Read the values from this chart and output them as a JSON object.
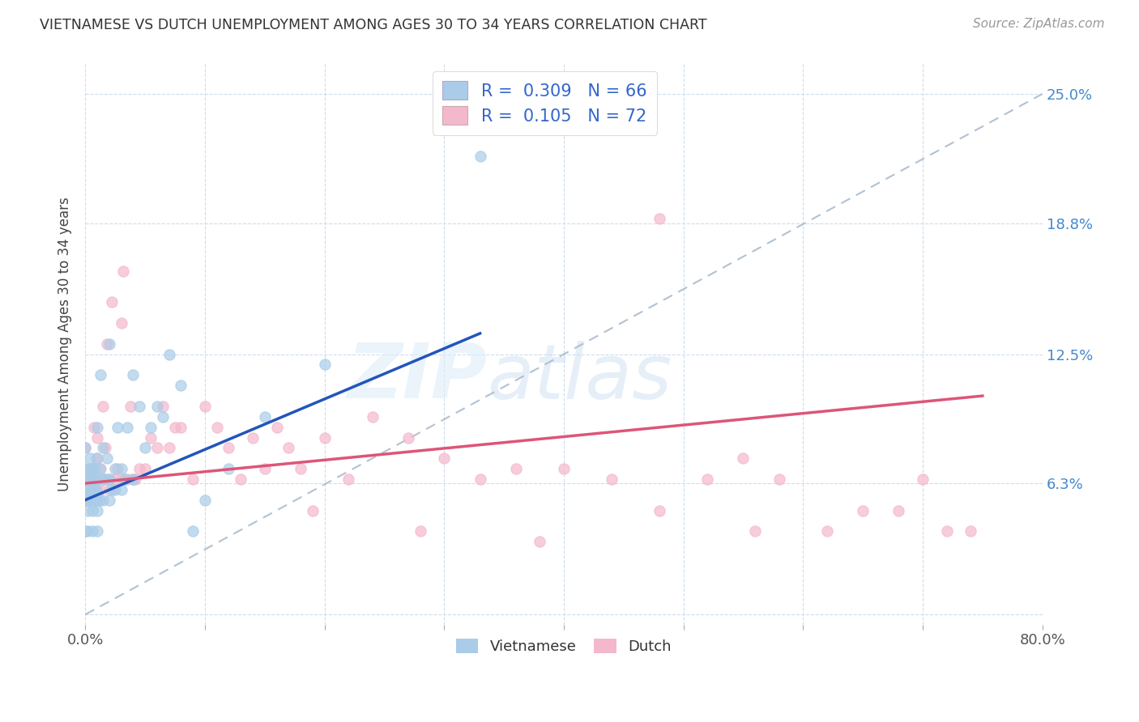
{
  "title": "VIETNAMESE VS DUTCH UNEMPLOYMENT AMONG AGES 30 TO 34 YEARS CORRELATION CHART",
  "source": "Source: ZipAtlas.com",
  "ylabel": "Unemployment Among Ages 30 to 34 years",
  "xlim": [
    0.0,
    0.8
  ],
  "ylim": [
    -0.005,
    0.265
  ],
  "ytick_positions": [
    0.0,
    0.063,
    0.125,
    0.188,
    0.25
  ],
  "ytick_labels": [
    "",
    "6.3%",
    "12.5%",
    "18.8%",
    "25.0%"
  ],
  "legend_R1": "0.309",
  "legend_N1": "66",
  "legend_R2": "0.105",
  "legend_N2": "72",
  "color_viet": "#aacce8",
  "color_dutch": "#f4b8cc",
  "color_line_viet": "#2255bb",
  "color_line_dutch": "#dd5577",
  "color_diag": "#aabbcc",
  "watermark_zip": "ZIP",
  "watermark_atlas": "atlas",
  "background_color": "#ffffff",
  "viet_line_x0": 0.0,
  "viet_line_y0": 0.055,
  "viet_line_x1": 0.33,
  "viet_line_y1": 0.135,
  "dutch_line_x0": 0.0,
  "dutch_line_y0": 0.063,
  "dutch_line_x1": 0.75,
  "dutch_line_y1": 0.105,
  "viet_x": [
    0.0,
    0.0,
    0.0,
    0.0,
    0.0,
    0.0,
    0.0,
    0.002,
    0.002,
    0.003,
    0.003,
    0.004,
    0.004,
    0.004,
    0.005,
    0.005,
    0.005,
    0.005,
    0.006,
    0.006,
    0.006,
    0.007,
    0.007,
    0.008,
    0.008,
    0.009,
    0.009,
    0.01,
    0.01,
    0.01,
    0.01,
    0.01,
    0.012,
    0.012,
    0.013,
    0.015,
    0.015,
    0.015,
    0.017,
    0.018,
    0.02,
    0.02,
    0.02,
    0.022,
    0.025,
    0.025,
    0.027,
    0.03,
    0.03,
    0.033,
    0.035,
    0.04,
    0.04,
    0.045,
    0.05,
    0.055,
    0.06,
    0.065,
    0.07,
    0.08,
    0.09,
    0.1,
    0.12,
    0.15,
    0.2,
    0.33
  ],
  "viet_y": [
    0.055,
    0.06,
    0.063,
    0.065,
    0.07,
    0.08,
    0.04,
    0.04,
    0.05,
    0.055,
    0.06,
    0.065,
    0.07,
    0.075,
    0.055,
    0.06,
    0.065,
    0.07,
    0.04,
    0.05,
    0.055,
    0.06,
    0.065,
    0.055,
    0.07,
    0.06,
    0.075,
    0.04,
    0.05,
    0.055,
    0.065,
    0.09,
    0.055,
    0.07,
    0.115,
    0.055,
    0.065,
    0.08,
    0.065,
    0.075,
    0.055,
    0.065,
    0.13,
    0.06,
    0.06,
    0.07,
    0.09,
    0.06,
    0.07,
    0.065,
    0.09,
    0.065,
    0.115,
    0.1,
    0.08,
    0.09,
    0.1,
    0.095,
    0.125,
    0.11,
    0.04,
    0.055,
    0.07,
    0.095,
    0.12,
    0.22
  ],
  "dutch_x": [
    0.0,
    0.0,
    0.0,
    0.0,
    0.004,
    0.005,
    0.006,
    0.007,
    0.008,
    0.009,
    0.01,
    0.01,
    0.012,
    0.013,
    0.015,
    0.016,
    0.017,
    0.018,
    0.02,
    0.02,
    0.022,
    0.025,
    0.027,
    0.03,
    0.03,
    0.032,
    0.035,
    0.038,
    0.04,
    0.042,
    0.045,
    0.05,
    0.055,
    0.06,
    0.065,
    0.07,
    0.075,
    0.08,
    0.09,
    0.1,
    0.11,
    0.12,
    0.13,
    0.14,
    0.15,
    0.16,
    0.17,
    0.18,
    0.2,
    0.22,
    0.24,
    0.27,
    0.3,
    0.33,
    0.36,
    0.4,
    0.44,
    0.48,
    0.52,
    0.55,
    0.58,
    0.62,
    0.65,
    0.68,
    0.7,
    0.72,
    0.74,
    0.48,
    0.28,
    0.19,
    0.38,
    0.56
  ],
  "dutch_y": [
    0.055,
    0.065,
    0.07,
    0.08,
    0.055,
    0.065,
    0.07,
    0.09,
    0.055,
    0.065,
    0.075,
    0.085,
    0.06,
    0.07,
    0.1,
    0.065,
    0.08,
    0.13,
    0.06,
    0.065,
    0.15,
    0.065,
    0.07,
    0.14,
    0.065,
    0.165,
    0.065,
    0.1,
    0.065,
    0.065,
    0.07,
    0.07,
    0.085,
    0.08,
    0.1,
    0.08,
    0.09,
    0.09,
    0.065,
    0.1,
    0.09,
    0.08,
    0.065,
    0.085,
    0.07,
    0.09,
    0.08,
    0.07,
    0.085,
    0.065,
    0.095,
    0.085,
    0.075,
    0.065,
    0.07,
    0.07,
    0.065,
    0.05,
    0.065,
    0.075,
    0.065,
    0.04,
    0.05,
    0.05,
    0.065,
    0.04,
    0.04,
    0.19,
    0.04,
    0.05,
    0.035,
    0.04
  ]
}
